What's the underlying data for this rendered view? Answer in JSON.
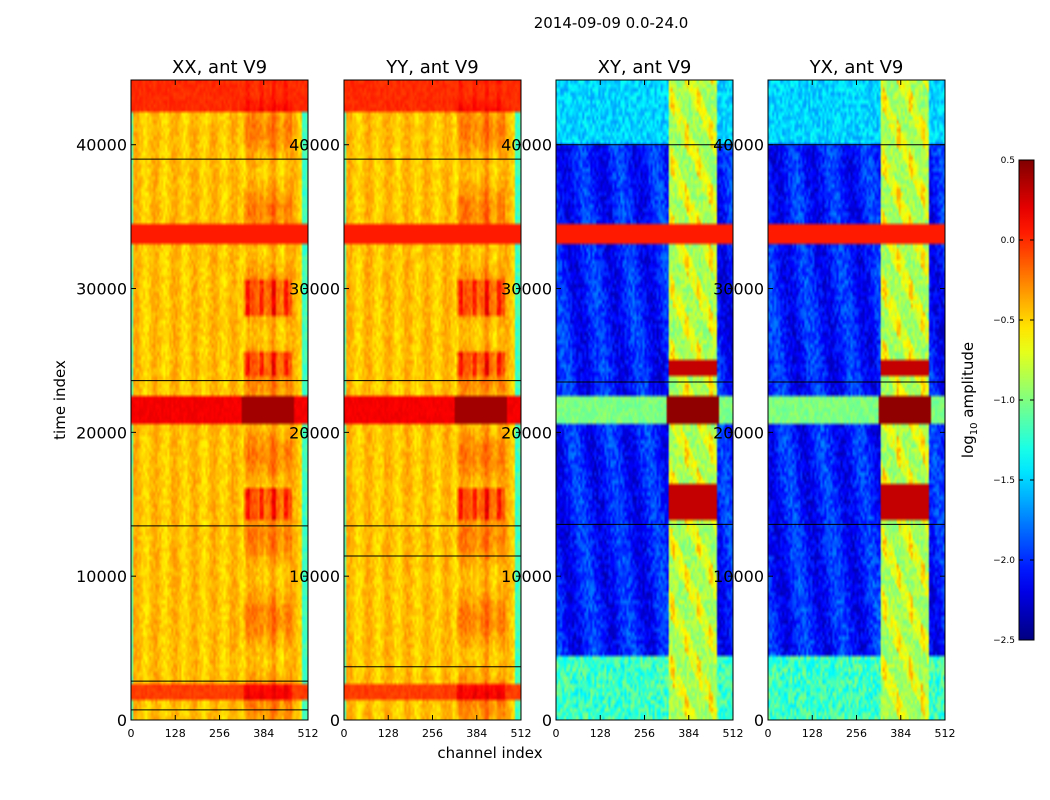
{
  "chart_data": {
    "type": "heatmap",
    "suptitle": "2014-09-09 0.0-24.0",
    "xlabel": "channel index",
    "ylabel": "time index",
    "xlim": [
      0,
      512
    ],
    "ylim": [
      0,
      44500
    ],
    "xticks": [
      0,
      128,
      256,
      384,
      512
    ],
    "yticks": [
      0,
      10000,
      20000,
      30000,
      40000
    ],
    "panels": [
      {
        "id": "XX",
        "title": "XX, ant V9",
        "kind": "auto",
        "hlines": [
          39000,
          23600,
          13500,
          2700,
          700
        ]
      },
      {
        "id": "YY",
        "title": "YY, ant V9",
        "kind": "auto",
        "hlines": [
          39000,
          23600,
          13500,
          11400,
          3700
        ]
      },
      {
        "id": "XY",
        "title": "XY, ant V9",
        "kind": "cross",
        "hlines": [
          40000,
          23500,
          13600
        ]
      },
      {
        "id": "YX",
        "title": "YX, ant V9",
        "kind": "cross",
        "hlines": [
          40000,
          23500,
          13600
        ]
      }
    ],
    "features": {
      "flag_band_time": [
        33100,
        34400
      ],
      "strong_band_time": [
        20700,
        22600
      ],
      "rfi_channels": [
        [
          330,
          345
        ],
        [
          370,
          385
        ],
        [
          405,
          420
        ],
        [
          440,
          455
        ]
      ]
    },
    "colorbar": {
      "label": "log",
      "label_sub": "10",
      "label_rest": " amplitude",
      "vmin": -2.5,
      "vmax": 0.5,
      "ticks": [
        "0.5",
        "0.0",
        "−0.5",
        "−1.0",
        "−1.5",
        "−2.0",
        "−2.5"
      ],
      "tick_values": [
        0.5,
        0.0,
        -0.5,
        -1.0,
        -1.5,
        -2.0,
        -2.5
      ],
      "colormap": "jet"
    }
  }
}
